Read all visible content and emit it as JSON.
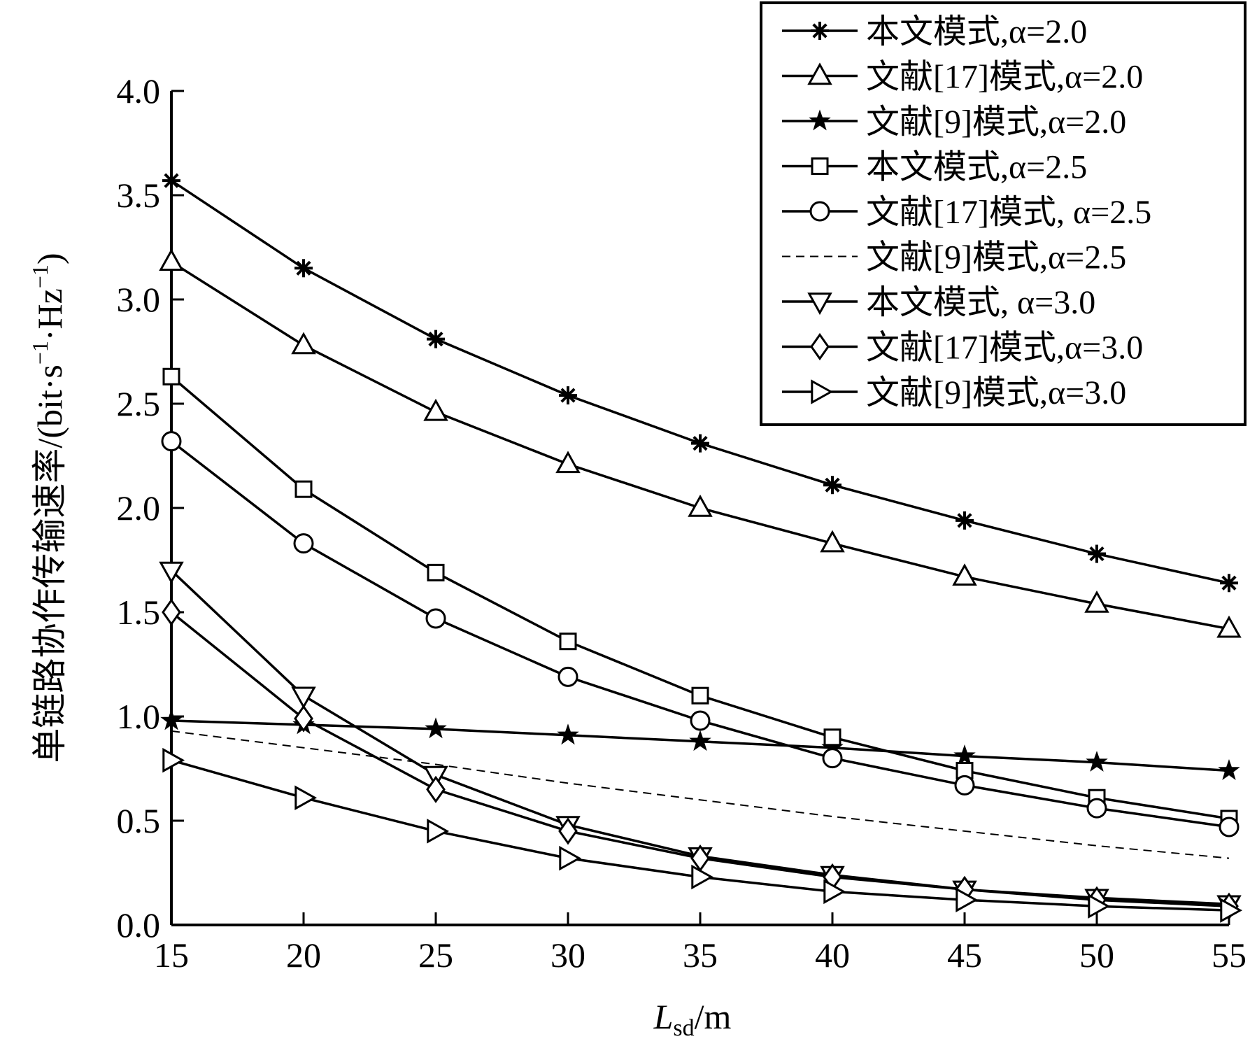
{
  "chart_data": {
    "type": "line",
    "xlabel": {
      "main": "L",
      "sub": "sd",
      "unit": "/m"
    },
    "ylabel": {
      "text": "单链路协作传输速率/(bit·s",
      "sup1": "−1",
      "mid": "·Hz",
      "sup2": "−1",
      "close": ")"
    },
    "x": [
      15,
      20,
      25,
      30,
      35,
      40,
      45,
      50,
      55
    ],
    "xlim": [
      15,
      55
    ],
    "ylim": [
      0,
      4
    ],
    "xticks": [
      "15",
      "20",
      "25",
      "30",
      "35",
      "40",
      "45",
      "50",
      "55"
    ],
    "yticks": [
      "0.0",
      "0.5",
      "1.0",
      "1.5",
      "2.0",
      "2.5",
      "3.0",
      "3.5",
      "4.0"
    ],
    "grid": false,
    "legend_position": "top-right",
    "series": [
      {
        "name": "本文模式,α=2.0",
        "marker": "asterisk",
        "dashed": false,
        "values": [
          3.57,
          3.15,
          2.81,
          2.54,
          2.31,
          2.11,
          1.94,
          1.78,
          1.64
        ]
      },
      {
        "name": "文献[17]模式,α=2.0",
        "marker": "triangle-up",
        "dashed": false,
        "values": [
          3.18,
          2.78,
          2.46,
          2.21,
          2.0,
          1.83,
          1.67,
          1.54,
          1.42
        ]
      },
      {
        "name": "文献[9]模式,α=2.0",
        "marker": "star",
        "dashed": false,
        "values": [
          0.98,
          0.96,
          0.94,
          0.91,
          0.88,
          0.85,
          0.81,
          0.78,
          0.74
        ]
      },
      {
        "name": "本文模式,α=2.5",
        "marker": "square",
        "dashed": false,
        "values": [
          2.63,
          2.09,
          1.69,
          1.36,
          1.1,
          0.9,
          0.74,
          0.61,
          0.51
        ]
      },
      {
        "name": "文献[17]模式, α=2.5",
        "marker": "circle",
        "dashed": false,
        "values": [
          2.32,
          1.83,
          1.47,
          1.19,
          0.98,
          0.8,
          0.67,
          0.56,
          0.47
        ]
      },
      {
        "name": "文献[9]模式,α=2.5",
        "marker": "none",
        "dashed": true,
        "values": [
          0.93,
          0.85,
          0.77,
          0.68,
          0.6,
          0.52,
          0.45,
          0.38,
          0.32
        ]
      },
      {
        "name": "本文模式, α=3.0",
        "marker": "triangle-down",
        "dashed": false,
        "values": [
          1.7,
          1.1,
          0.72,
          0.48,
          0.33,
          0.24,
          0.17,
          0.13,
          0.1
        ]
      },
      {
        "name": "文献[17]模式,α=3.0",
        "marker": "diamond",
        "dashed": false,
        "values": [
          1.5,
          0.99,
          0.65,
          0.45,
          0.32,
          0.23,
          0.17,
          0.12,
          0.09
        ]
      },
      {
        "name": "文献[9]模式,α=3.0",
        "marker": "triangle-right",
        "dashed": false,
        "values": [
          0.79,
          0.61,
          0.45,
          0.32,
          0.23,
          0.16,
          0.12,
          0.09,
          0.07
        ]
      }
    ]
  }
}
